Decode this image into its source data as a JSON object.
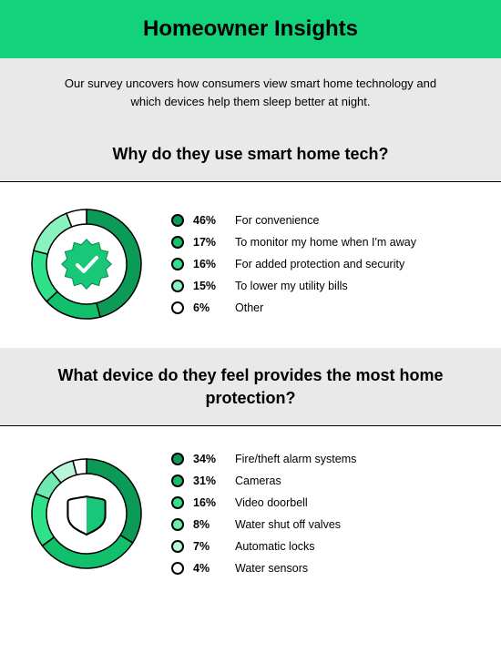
{
  "colors": {
    "header_bg": "#12d37b",
    "intro_bg": "#e9e9e9",
    "section_heading_bg": "#e9e9e9",
    "page_bg": "#ffffff",
    "text": "#000000",
    "divider": "#000000",
    "donut_stroke": "#000000",
    "dot_border": "#000000",
    "badge_stroke": "#0a8a4d"
  },
  "header": {
    "title": "Homeowner Insights",
    "title_fontsize": 24,
    "title_weight": 700
  },
  "intro": {
    "text": "Our survey uncovers how consumers view smart home technology and which devices help them sleep better at night.",
    "fontsize": 13
  },
  "sections": [
    {
      "heading": "Why do they use smart home tech?",
      "icon": "badge-check",
      "donut": {
        "radius_outer": 60,
        "radius_inner": 44,
        "stroke_width": 1.5,
        "segments": [
          {
            "pct": 46,
            "color": "#0b9b56"
          },
          {
            "pct": 17,
            "color": "#12c06b"
          },
          {
            "pct": 16,
            "color": "#2fe28a"
          },
          {
            "pct": 15,
            "color": "#8af2bf"
          },
          {
            "pct": 6,
            "color": "#ffffff"
          }
        ]
      },
      "items": [
        {
          "pct": "46%",
          "label": "For convenience",
          "dot": "#0b9b56"
        },
        {
          "pct": "17%",
          "label": "To monitor my home when I'm away",
          "dot": "#12c06b"
        },
        {
          "pct": "16%",
          "label": "For added protection and security",
          "dot": "#2fe28a"
        },
        {
          "pct": "15%",
          "label": "To lower my utility bills",
          "dot": "#8af2bf"
        },
        {
          "pct": "6%",
          "label": "Other",
          "dot": "#ffffff"
        }
      ]
    },
    {
      "heading": "What device do they feel provides the most home protection?",
      "icon": "shield",
      "donut": {
        "radius_outer": 60,
        "radius_inner": 44,
        "stroke_width": 1.5,
        "segments": [
          {
            "pct": 34,
            "color": "#0b9b56"
          },
          {
            "pct": 31,
            "color": "#12c06b"
          },
          {
            "pct": 16,
            "color": "#2fe28a"
          },
          {
            "pct": 8,
            "color": "#6eeab0"
          },
          {
            "pct": 7,
            "color": "#b8f6d7"
          },
          {
            "pct": 4,
            "color": "#ffffff"
          }
        ]
      },
      "items": [
        {
          "pct": "34%",
          "label": "Fire/theft alarm systems",
          "dot": "#0b9b56"
        },
        {
          "pct": "31%",
          "label": "Cameras",
          "dot": "#12c06b"
        },
        {
          "pct": "16%",
          "label": "Video doorbell",
          "dot": "#2fe28a"
        },
        {
          "pct": "8%",
          "label": "Water shut off valves",
          "dot": "#6eeab0"
        },
        {
          "pct": "7%",
          "label": "Automatic locks",
          "dot": "#b8f6d7"
        },
        {
          "pct": "4%",
          "label": "Water sensors",
          "dot": "#ffffff"
        }
      ]
    }
  ]
}
